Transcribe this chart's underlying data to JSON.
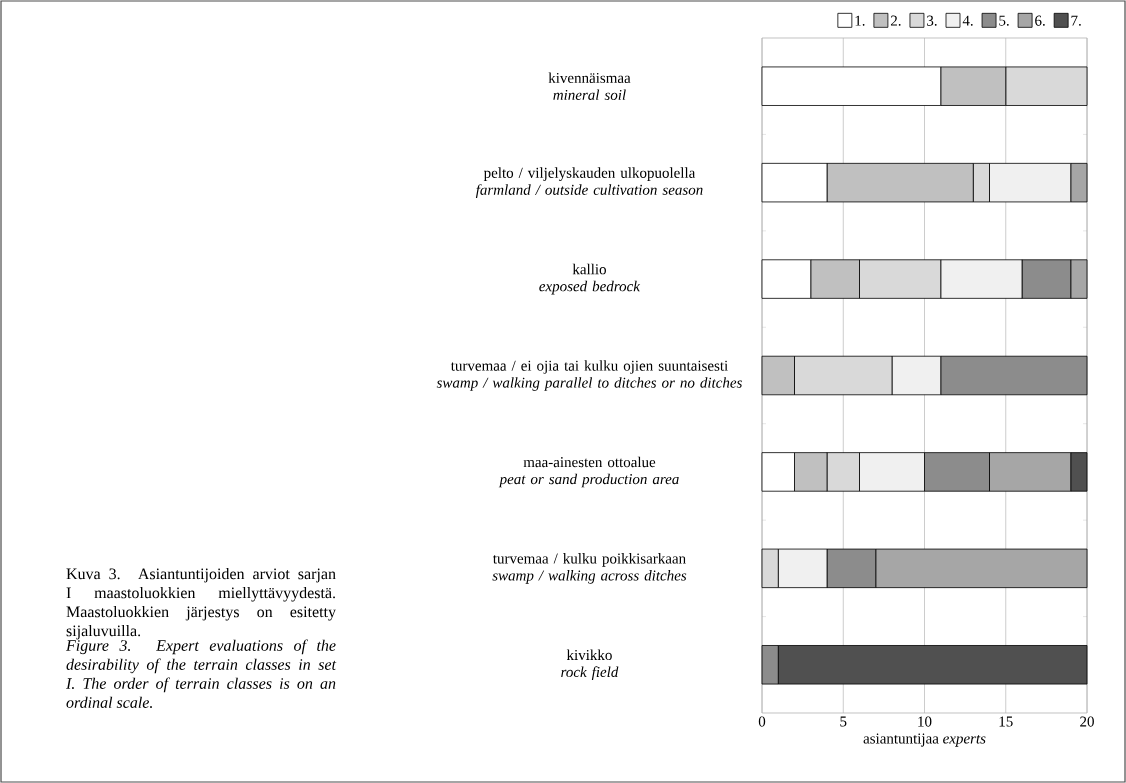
{
  "chart_data": {
    "type": "bar",
    "orientation": "horizontal",
    "stacked": true,
    "categories": [
      "kivennäismaa *mineral soil*",
      "pelto / viljelyskauden ulkopuolella *farmland / outside cultivation season*",
      "kallio *exposed bedrock*",
      "turvemaa / ei ojia tai kulku ojien suuntaisesti *swamp / walking parallel to ditches or no ditches*",
      "maa-ainesten ottoalue *peat or sand production area*",
      "turvemaa / kulku poikkisarkaan *swamp / walking across ditches*",
      "kivikko *rock field*"
    ],
    "series": [
      {
        "name": "1.",
        "color": "#ffffff",
        "values": [
          11,
          4,
          3,
          0,
          2,
          0,
          0
        ]
      },
      {
        "name": "2.",
        "color": "#c0c0c0",
        "values": [
          4,
          9,
          3,
          2,
          2,
          0,
          0
        ]
      },
      {
        "name": "3.",
        "color": "#d9d9d9",
        "values": [
          5,
          1,
          5,
          6,
          2,
          1,
          0
        ]
      },
      {
        "name": "4.",
        "color": "#f0f0f0",
        "values": [
          0,
          5,
          5,
          3,
          4,
          3,
          0
        ]
      },
      {
        "name": "5.",
        "color": "#8c8c8c",
        "values": [
          0,
          0,
          3,
          9,
          4,
          3,
          1
        ]
      },
      {
        "name": "6.",
        "color": "#a6a6a6",
        "values": [
          0,
          1,
          1,
          0,
          5,
          13,
          0
        ]
      },
      {
        "name": "7.",
        "color": "#505050",
        "values": [
          0,
          0,
          0,
          0,
          1,
          0,
          19
        ]
      }
    ],
    "xlim": [
      0,
      20
    ],
    "xticks": [
      0,
      5,
      10,
      15,
      20
    ],
    "xlabel": "asiantuntijaa *experts*",
    "grid": "x",
    "legend": "top",
    "annotations": [
      "Kuva 3. Asiantuntijoiden arviot sarjan I maastoluokkien miellyttävyydestä. Maastoluokkien järjestys on esitetty sijaluvuilla.",
      "Figure 3. Expert evaluations of the desirability of the terrain classes in set I. The order of terrain classes is on an ordinal scale."
    ]
  }
}
